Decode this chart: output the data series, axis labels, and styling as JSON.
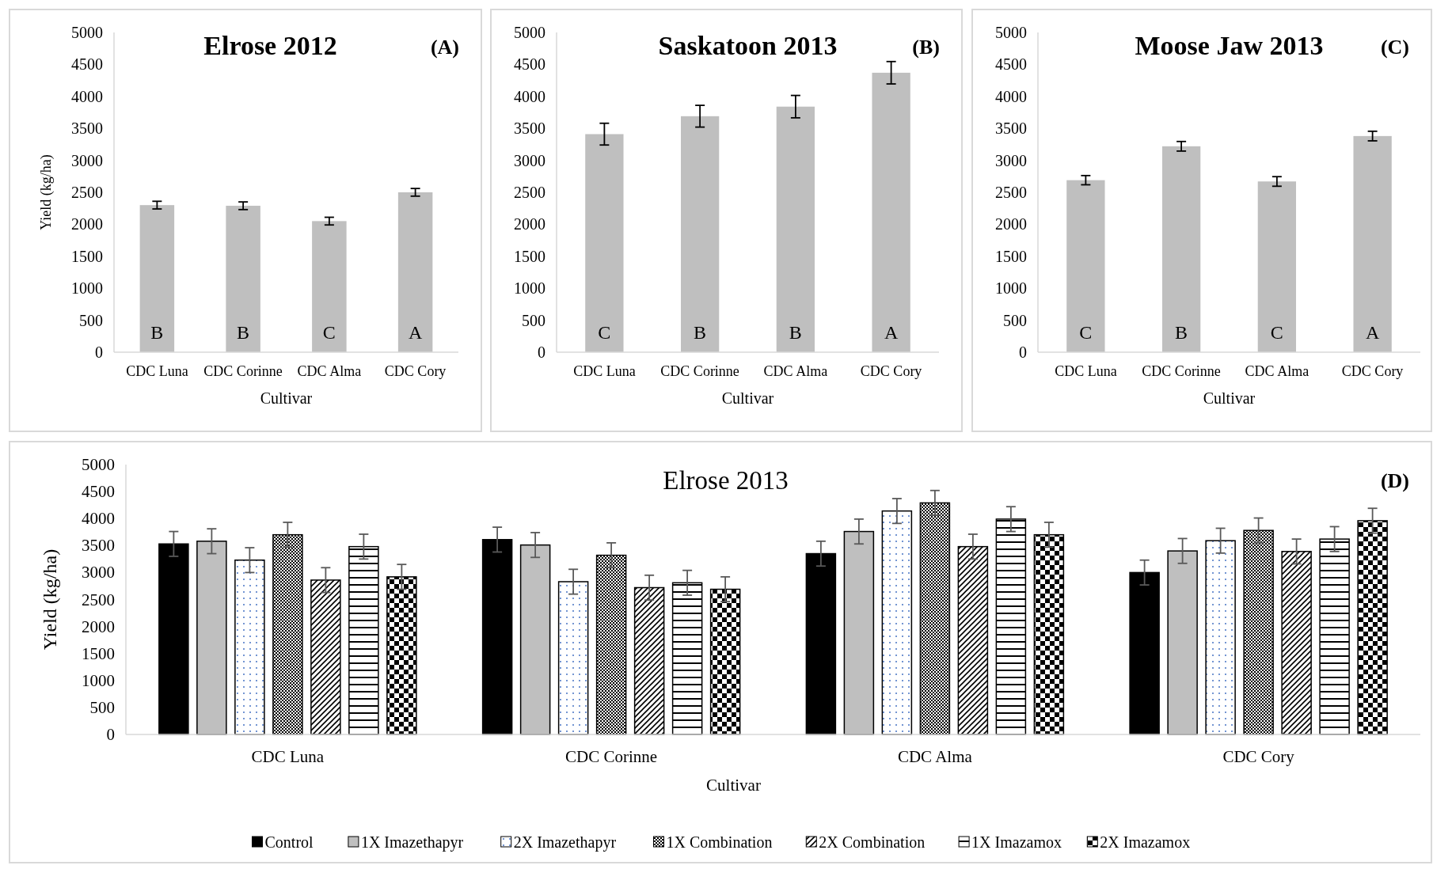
{
  "chart_data": [
    {
      "type": "bar",
      "title": "Elrose 2012",
      "xlabel": "Cultivar",
      "ylabel": "Yield (kg/ha)",
      "categories": [
        "CDC Luna",
        "CDC Corinne",
        "CDC Alma",
        "CDC Cory"
      ],
      "values": [
        2300,
        2290,
        2050,
        2500
      ],
      "errors": [
        60,
        60,
        60,
        60
      ],
      "color": "#bfbfbf",
      "ylim": [
        0,
        5000
      ],
      "yticks": [
        0,
        500,
        1000,
        1500,
        2000,
        2500,
        3000,
        3500,
        4000,
        4500,
        5000
      ],
      "legend": false,
      "annotations": [
        "(A)",
        "B",
        "B",
        "C",
        "A"
      ]
    },
    {
      "type": "bar",
      "title": "Saskatoon 2013",
      "xlabel": "Cultivar",
      "categories": [
        "CDC Luna",
        "CDC Corinne",
        "CDC Alma",
        "CDC Cory"
      ],
      "values": [
        3410,
        3690,
        3840,
        4370
      ],
      "errors": [
        170,
        170,
        175,
        175
      ],
      "color": "#bfbfbf",
      "ylim": [
        0,
        5000
      ],
      "yticks": [
        0,
        500,
        1000,
        1500,
        2000,
        2500,
        3000,
        3500,
        4000,
        4500,
        5000
      ],
      "legend": false,
      "annotations": [
        "(B)",
        "C",
        "B",
        "B",
        "A"
      ]
    },
    {
      "type": "bar",
      "title": "Moose Jaw 2013",
      "xlabel": "Cultivar",
      "categories": [
        "CDC Luna",
        "CDC Corinne",
        "CDC Alma",
        "CDC Cory"
      ],
      "values": [
        2690,
        3220,
        2670,
        3380
      ],
      "errors": [
        72,
        75,
        75,
        75
      ],
      "color": "#bfbfbf",
      "ylim": [
        0,
        5000
      ],
      "yticks": [
        0,
        500,
        1000,
        1500,
        2000,
        2500,
        3000,
        3500,
        4000,
        4500,
        5000
      ],
      "legend": false,
      "annotations": [
        "(C)",
        "C",
        "B",
        "C",
        "A"
      ]
    },
    {
      "type": "bar",
      "title": "Elrose 2013",
      "xlabel": "Cultivar",
      "ylabel": "Yield (kg/ha)",
      "categories": [
        "CDC Luna",
        "CDC Corinne",
        "CDC Alma",
        "CDC Cory"
      ],
      "ylim": [
        0,
        5000
      ],
      "yticks": [
        0,
        500,
        1000,
        1500,
        2000,
        2500,
        3000,
        3500,
        4000,
        4500,
        5000
      ],
      "legend": "bottom",
      "annotations": [
        "(D)"
      ],
      "series": [
        {
          "name": "Control",
          "color": "#000000",
          "values": [
            3530,
            3610,
            3350,
            3000
          ],
          "errors": [
            230,
            230,
            230,
            230
          ]
        },
        {
          "name": "1X Imazethapyr",
          "color": "#bfbfbf",
          "values": [
            3580,
            3510,
            3760,
            3400
          ],
          "errors": [
            230,
            230,
            230,
            230
          ]
        },
        {
          "name": "2X Imazethapyr",
          "color": "#000000",
          "values": [
            3230,
            2830,
            4140,
            3590
          ],
          "errors": [
            230,
            230,
            230,
            230
          ]
        },
        {
          "name": "1X Combination",
          "color": "#000000",
          "values": [
            3700,
            3320,
            4290,
            3780
          ],
          "errors": [
            230,
            230,
            230,
            230
          ]
        },
        {
          "name": "2X Combination",
          "color": "#000000",
          "values": [
            2860,
            2720,
            3480,
            3390
          ],
          "errors": [
            230,
            230,
            230,
            230
          ]
        },
        {
          "name": "1X Imazamox",
          "color": "#000000",
          "values": [
            3480,
            2810,
            3990,
            3620
          ],
          "errors": [
            230,
            230,
            230,
            230
          ]
        },
        {
          "name": "2X Imazamox",
          "color": "#000000",
          "values": [
            2920,
            2690,
            3700,
            3960
          ],
          "errors": [
            230,
            230,
            230,
            230
          ]
        }
      ]
    }
  ]
}
